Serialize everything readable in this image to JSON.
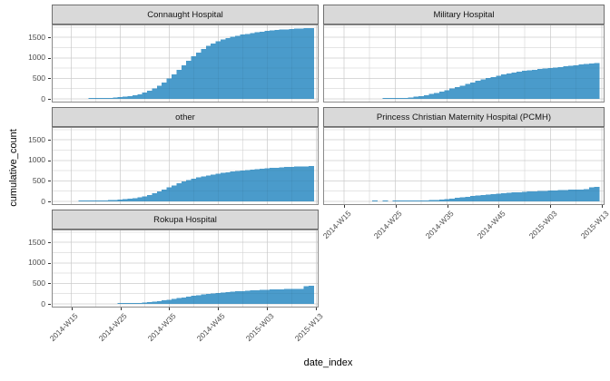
{
  "figure": {
    "x_axis_title": "date_index",
    "y_axis_title": "cumulative_count",
    "bar_color": "#4a9bcb",
    "strip_fill": "#d9d9d9",
    "strip_border": "#6f6f6f",
    "panel_border": "#8a8a8a",
    "grid_major_color": "#e3e3e3",
    "grid_minor_color": "#f0f0f0",
    "tick_color": "#333333",
    "axis_text_color": "#4d4d4d"
  },
  "chart_data": {
    "type": "bar",
    "title": "",
    "xlabel": "date_index",
    "ylabel": "cumulative_count",
    "faceting": "one panel per hospital, shared x and y scales, no legend",
    "grid": true,
    "legend": "none",
    "y_ticks": [
      0,
      500,
      1000,
      1500
    ],
    "ylim": [
      0,
      1810
    ],
    "x_tick_labels": [
      "2014-W15",
      "2014-W25",
      "2014-W35",
      "2014-W45",
      "2015-W03",
      "2015-W13"
    ],
    "x": [
      "2014-W17",
      "2014-W18",
      "2014-W19",
      "2014-W20",
      "2014-W21",
      "2014-W22",
      "2014-W23",
      "2014-W24",
      "2014-W25",
      "2014-W26",
      "2014-W27",
      "2014-W28",
      "2014-W29",
      "2014-W30",
      "2014-W31",
      "2014-W32",
      "2014-W33",
      "2014-W34",
      "2014-W35",
      "2014-W36",
      "2014-W37",
      "2014-W38",
      "2014-W39",
      "2014-W40",
      "2014-W41",
      "2014-W42",
      "2014-W43",
      "2014-W44",
      "2014-W45",
      "2014-W46",
      "2014-W47",
      "2014-W48",
      "2014-W49",
      "2014-W50",
      "2014-W51",
      "2014-W52",
      "2015-W01",
      "2015-W02",
      "2015-W03",
      "2015-W04",
      "2015-W05",
      "2015-W06",
      "2015-W07",
      "2015-W08",
      "2015-W09",
      "2015-W10",
      "2015-W11",
      "2015-W12"
    ],
    "series": [
      {
        "name": "Connaught Hospital",
        "values": [
          0,
          0,
          8,
          12,
          16,
          20,
          26,
          34,
          44,
          55,
          70,
          90,
          115,
          150,
          195,
          250,
          320,
          400,
          495,
          600,
          710,
          820,
          930,
          1035,
          1130,
          1215,
          1290,
          1350,
          1400,
          1445,
          1480,
          1510,
          1540,
          1565,
          1585,
          1605,
          1622,
          1638,
          1652,
          1665,
          1676,
          1686,
          1695,
          1702,
          1708,
          1714,
          1719,
          1724
        ]
      },
      {
        "name": "Military Hospital",
        "values": [
          0,
          0,
          0,
          0,
          0,
          0,
          8,
          10,
          14,
          18,
          26,
          38,
          52,
          70,
          92,
          118,
          148,
          180,
          215,
          250,
          288,
          326,
          364,
          402,
          438,
          472,
          505,
          536,
          565,
          592,
          617,
          640,
          661,
          680,
          697,
          712,
          726,
          740,
          753,
          766,
          779,
          792,
          805,
          818,
          835,
          850,
          862,
          868
        ]
      },
      {
        "name": "other",
        "values": [
          14,
          16,
          18,
          20,
          23,
          26,
          30,
          36,
          43,
          52,
          63,
          78,
          98,
          125,
          158,
          198,
          243,
          292,
          342,
          392,
          440,
          484,
          522,
          555,
          584,
          610,
          634,
          656,
          676,
          694,
          711,
          727,
          741,
          754,
          766,
          777,
          788,
          798,
          807,
          815,
          823,
          830,
          837,
          843,
          848,
          852,
          855,
          858
        ]
      },
      {
        "name": "Princess Christian Maternity Hospital (PCMH)",
        "values": [
          0,
          0,
          0,
          0,
          8,
          0,
          8,
          0,
          9,
          10,
          11,
          13,
          15,
          18,
          22,
          28,
          36,
          46,
          58,
          71,
          85,
          100,
          115,
          130,
          144,
          157,
          169,
          180,
          190,
          200,
          209,
          217,
          225,
          232,
          239,
          245,
          251,
          257,
          263,
          268,
          273,
          278,
          283,
          288,
          292,
          296,
          340,
          352
        ]
      },
      {
        "name": "Rokupa Hospital",
        "values": [
          0,
          0,
          0,
          0,
          0,
          0,
          0,
          0,
          13,
          15,
          18,
          22,
          27,
          34,
          43,
          55,
          69,
          85,
          103,
          122,
          141,
          160,
          178,
          196,
          213,
          229,
          244,
          257,
          269,
          280,
          290,
          299,
          307,
          315,
          322,
          328,
          334,
          339,
          344,
          349,
          353,
          357,
          360,
          363,
          365,
          367,
          428,
          438
        ]
      }
    ]
  }
}
